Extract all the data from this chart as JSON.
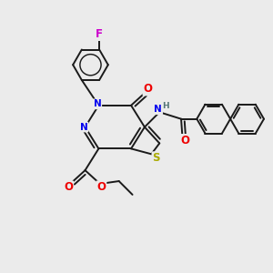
{
  "background_color": "#ebebeb",
  "bond_color": "#1a1a1a",
  "bond_width": 1.4,
  "atom_colors": {
    "N": "#0000ee",
    "O": "#ee0000",
    "S": "#aaaa00",
    "F": "#cc00cc",
    "H": "#557777",
    "C": "#1a1a1a"
  },
  "font_size": 7.5,
  "fig_width": 3.0,
  "fig_height": 3.0,
  "dpi": 100
}
